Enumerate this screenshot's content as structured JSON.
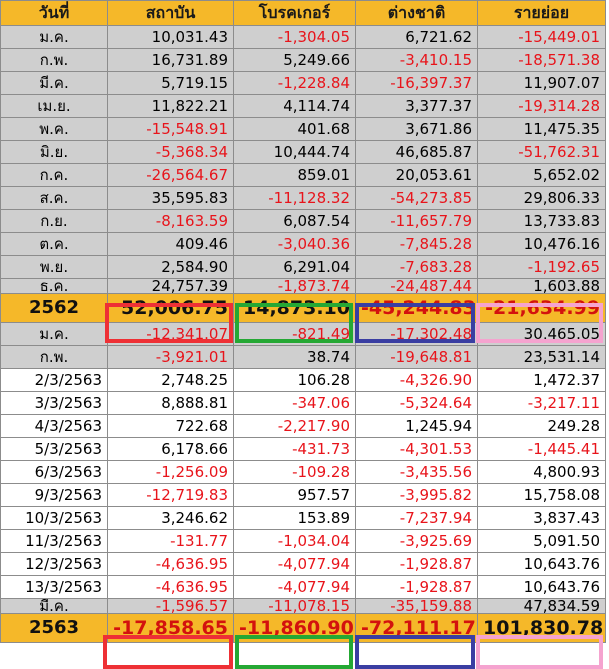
{
  "headers": [
    "วันที่",
    "สถาบัน",
    "โบรคเกอร์",
    "ต่างชาติ",
    "รายย่อย"
  ],
  "rows_2562": [
    {
      "label": "ม.ค.",
      "values": [
        "10,031.43",
        "-1,304.05",
        "6,721.62",
        "-15,449.01"
      ]
    },
    {
      "label": "ก.พ.",
      "values": [
        "16,731.89",
        "5,249.66",
        "-3,410.15",
        "-18,571.38"
      ]
    },
    {
      "label": "มี.ค.",
      "values": [
        "5,719.15",
        "-1,228.84",
        "-16,397.37",
        "11,907.07"
      ]
    },
    {
      "label": "เม.ย.",
      "values": [
        "11,822.21",
        "4,114.74",
        "3,377.37",
        "-19,314.28"
      ]
    },
    {
      "label": "พ.ค.",
      "values": [
        "-15,548.91",
        "401.68",
        "3,671.86",
        "11,475.35"
      ]
    },
    {
      "label": "มิ.ย.",
      "values": [
        "-5,368.34",
        "10,444.74",
        "46,685.87",
        "-51,762.31"
      ]
    },
    {
      "label": "ก.ค.",
      "values": [
        "-26,564.67",
        "859.01",
        "20,053.61",
        "5,652.02"
      ]
    },
    {
      "label": "ส.ค.",
      "values": [
        "35,595.83",
        "-11,128.32",
        "-54,273.85",
        "29,806.33"
      ]
    },
    {
      "label": "ก.ย.",
      "values": [
        "-8,163.59",
        "6,087.54",
        "-11,657.79",
        "13,733.83"
      ]
    },
    {
      "label": "ต.ค.",
      "values": [
        "409.46",
        "-3,040.36",
        "-7,845.28",
        "10,476.16"
      ]
    },
    {
      "label": "พ.ย.",
      "values": [
        "2,584.90",
        "6,291.04",
        "-7,683.28",
        "-1,192.65"
      ]
    },
    {
      "label": "ธ.ค.",
      "values": [
        "24,757.39",
        "-1,873.74",
        "-24,487.44",
        "1,603.88"
      ]
    }
  ],
  "total_2562": {
    "label": "2562",
    "values": [
      "52,006.75",
      "14,873.10",
      "-45,244.83",
      "-21,634.99"
    ]
  },
  "rows_2563_months": [
    {
      "label": "ม.ค.",
      "values": [
        "-12,341.07",
        "-821.49",
        "-17,302.48",
        "30,465.05"
      ]
    },
    {
      "label": "ก.พ.",
      "values": [
        "-3,921.01",
        "38.74",
        "-19,648.81",
        "23,531.14"
      ]
    }
  ],
  "rows_2563_days": [
    {
      "label": "2/3/2563",
      "values": [
        "2,748.25",
        "106.28",
        "-4,326.90",
        "1,472.37"
      ]
    },
    {
      "label": "3/3/2563",
      "values": [
        "8,888.81",
        "-347.06",
        "-5,324.64",
        "-3,217.11"
      ]
    },
    {
      "label": "4/3/2563",
      "values": [
        "722.68",
        "-2,217.90",
        "1,245.94",
        "249.28"
      ]
    },
    {
      "label": "5/3/2563",
      "values": [
        "6,178.66",
        "-431.73",
        "-4,301.53",
        "-1,445.41"
      ]
    },
    {
      "label": "6/3/2563",
      "values": [
        "-1,256.09",
        "-109.28",
        "-3,435.56",
        "4,800.93"
      ]
    },
    {
      "label": "9/3/2563",
      "values": [
        "-12,719.83",
        "957.57",
        "-3,995.82",
        "15,758.08"
      ]
    },
    {
      "label": "10/3/2563",
      "values": [
        "3,246.62",
        "153.89",
        "-7,237.94",
        "3,837.43"
      ]
    },
    {
      "label": "11/3/2563",
      "values": [
        "-131.77",
        "-1,034.04",
        "-3,925.69",
        "5,091.50"
      ]
    },
    {
      "label": "12/3/2563",
      "values": [
        "-4,636.95",
        "-4,077.94",
        "-1,928.87",
        "10,643.76"
      ]
    },
    {
      "label": "13/3/2563",
      "values": [
        "-4,636.95",
        "-4,077.94",
        "-1,928.87",
        "10,643.76"
      ]
    }
  ],
  "row_mar": {
    "label": "มี.ค.",
    "values": [
      "-1,596.57",
      "-11,078.15",
      "-35,159.88",
      "47,834.59"
    ]
  },
  "total_2563": {
    "label": "2563",
    "values": [
      "-17,858.65",
      "-11,860.90",
      "-72,111.17",
      "101,830.78"
    ]
  },
  "colors": {
    "header_bg": "#f5b829",
    "month_row_bg": "#cfcfcf",
    "negative_text": "#e8141b",
    "box_red": "#ee3035",
    "box_green": "#25a834",
    "box_blue": "#3a3ea2",
    "box_pink": "#f5a3cf"
  }
}
